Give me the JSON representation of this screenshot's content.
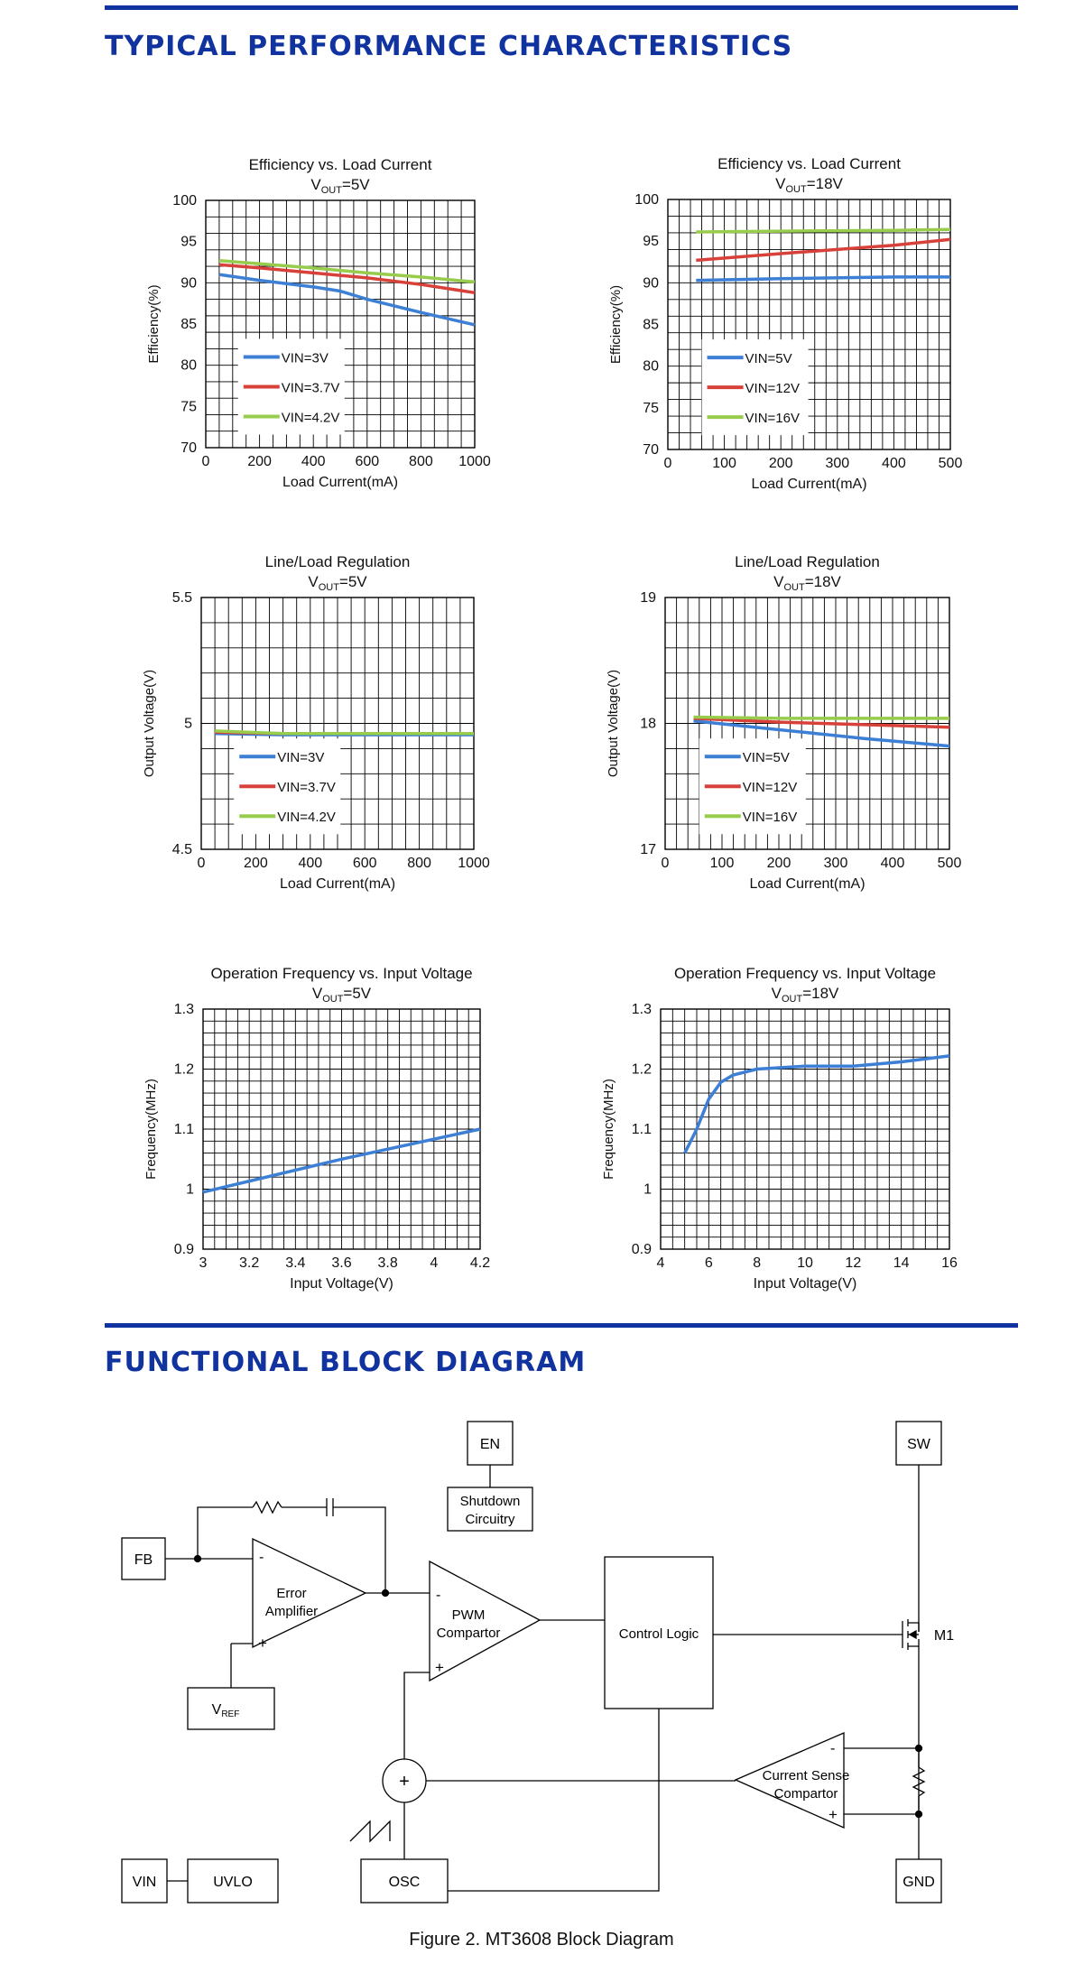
{
  "sections": {
    "performance_title": "TYPICAL PERFORMANCE CHARACTERISTICS",
    "block_diagram_title": "FUNCTIONAL BLOCK DIAGRAM"
  },
  "colors": {
    "blue": "#3c7fd4",
    "red": "#d8413a",
    "green": "#98cc4c",
    "rule": "#1133a0"
  },
  "chart_data": [
    {
      "type": "line",
      "title": "Efficiency vs. Load Current",
      "subtitle": {
        "main": "V",
        "sub": "OUT",
        "rest": "=5V"
      },
      "xlabel": "Load Current(mA)",
      "ylabel": "Efficiency(%)",
      "xlim": [
        0,
        1000
      ],
      "ylim": [
        70,
        100
      ],
      "xticks": [
        0,
        200,
        400,
        600,
        800,
        1000
      ],
      "yticks": [
        70,
        75,
        80,
        85,
        90,
        95,
        100
      ],
      "grid": true,
      "legend": "bottom-left",
      "series": [
        {
          "name": "VIN=3V",
          "color": "blue",
          "x": [
            50,
            200,
            400,
            500,
            600,
            800,
            1000
          ],
          "y": [
            91,
            90.3,
            89.5,
            89,
            88,
            86.4,
            84.9
          ]
        },
        {
          "name": "VIN=3.7V",
          "color": "red",
          "x": [
            50,
            200,
            400,
            600,
            800,
            1000
          ],
          "y": [
            92.2,
            91.8,
            91.2,
            90.6,
            89.8,
            88.8
          ]
        },
        {
          "name": "VIN=4.2V",
          "color": "green",
          "x": [
            50,
            200,
            400,
            600,
            800,
            1000
          ],
          "y": [
            92.7,
            92.3,
            91.8,
            91.2,
            90.7,
            90.1
          ]
        }
      ]
    },
    {
      "type": "line",
      "title": "Efficiency vs. Load Current",
      "subtitle": {
        "main": "V",
        "sub": "OUT",
        "rest": "=18V"
      },
      "xlabel": "Load Current(mA)",
      "ylabel": "Efficiency(%)",
      "xlim": [
        0,
        500
      ],
      "ylim": [
        70,
        100
      ],
      "xticks": [
        0,
        100,
        200,
        300,
        400,
        500
      ],
      "yticks": [
        70,
        75,
        80,
        85,
        90,
        95,
        100
      ],
      "grid": true,
      "legend": "bottom-left",
      "series": [
        {
          "name": "VIN=5V",
          "color": "blue",
          "x": [
            50,
            200,
            400,
            500
          ],
          "y": [
            90.3,
            90.5,
            90.7,
            90.7
          ]
        },
        {
          "name": "VIN=12V",
          "color": "red",
          "x": [
            50,
            200,
            400,
            500
          ],
          "y": [
            92.7,
            93.5,
            94.5,
            95.2
          ]
        },
        {
          "name": "VIN=16V",
          "color": "green",
          "x": [
            50,
            200,
            400,
            500
          ],
          "y": [
            96.1,
            96.2,
            96.3,
            96.4
          ]
        }
      ]
    },
    {
      "type": "line",
      "title": "Line/Load Regulation",
      "subtitle": {
        "main": "V",
        "sub": "OUT",
        "rest": "=5V"
      },
      "xlabel": "Load Current(mA)",
      "ylabel": "Output Voltage(V)",
      "xlim": [
        0,
        1000
      ],
      "ylim": [
        4.5,
        5.5
      ],
      "xticks": [
        0,
        200,
        400,
        600,
        800,
        1000
      ],
      "yticks": [
        4.5,
        5,
        5.5
      ],
      "grid": true,
      "legend": "bottom-left",
      "series": [
        {
          "name": "VIN=3V",
          "color": "blue",
          "x": [
            50,
            300,
            600,
            1000
          ],
          "y": [
            4.96,
            4.955,
            4.955,
            4.955
          ]
        },
        {
          "name": "VIN=3.7V",
          "color": "red",
          "x": [
            50,
            300,
            600,
            1000
          ],
          "y": [
            4.965,
            4.96,
            4.96,
            4.96
          ]
        },
        {
          "name": "VIN=4.2V",
          "color": "green",
          "x": [
            50,
            300,
            600,
            1000
          ],
          "y": [
            4.97,
            4.96,
            4.96,
            4.96
          ]
        }
      ]
    },
    {
      "type": "line",
      "title": "Line/Load Regulation",
      "subtitle": {
        "main": "V",
        "sub": "OUT",
        "rest": "=18V"
      },
      "xlabel": "Load Current(mA)",
      "ylabel": "Output Voltage(V)",
      "xlim": [
        0,
        500
      ],
      "ylim": [
        17,
        19
      ],
      "xticks": [
        0,
        100,
        200,
        300,
        400,
        500
      ],
      "yticks": [
        17,
        18,
        19
      ],
      "grid": true,
      "legend": "bottom-left",
      "series": [
        {
          "name": "VIN=5V",
          "color": "blue",
          "x": [
            50,
            200,
            350,
            500
          ],
          "y": [
            18.02,
            17.95,
            17.88,
            17.82
          ]
        },
        {
          "name": "VIN=12V",
          "color": "red",
          "x": [
            50,
            200,
            350,
            500
          ],
          "y": [
            18.04,
            18.01,
            17.99,
            17.97
          ]
        },
        {
          "name": "VIN=16V",
          "color": "green",
          "x": [
            50,
            200,
            350,
            500
          ],
          "y": [
            18.05,
            18.04,
            18.04,
            18.04
          ]
        }
      ]
    },
    {
      "type": "line",
      "title": "Operation Frequency vs. Input Voltage",
      "subtitle": {
        "main": "V",
        "sub": "OUT",
        "rest": "=5V"
      },
      "xlabel": "Input Voltage(V)",
      "ylabel": "Frequency(MHz)",
      "xlim": [
        3,
        4.2
      ],
      "ylim": [
        0.9,
        1.3
      ],
      "xticks": [
        3,
        3.2,
        3.4,
        3.6,
        3.8,
        4,
        4.2
      ],
      "yticks": [
        0.9,
        1,
        1.1,
        1.2,
        1.3
      ],
      "grid": true,
      "legend": "none",
      "series": [
        {
          "color": "blue",
          "x": [
            3,
            3.6,
            4.2
          ],
          "y": [
            0.995,
            1.05,
            1.1
          ]
        }
      ]
    },
    {
      "type": "line",
      "title": "Operation Frequency vs. Input Voltage",
      "subtitle": {
        "main": "V",
        "sub": "OUT",
        "rest": "=18V"
      },
      "xlabel": "Input Voltage(V)",
      "ylabel": "Frequency(MHz)",
      "xlim": [
        4,
        16
      ],
      "ylim": [
        0.9,
        1.3
      ],
      "xticks": [
        4,
        6,
        8,
        10,
        12,
        14,
        16
      ],
      "yticks": [
        0.9,
        1,
        1.1,
        1.2,
        1.3
      ],
      "grid": true,
      "legend": "none",
      "series": [
        {
          "color": "blue",
          "x": [
            5,
            5.5,
            6,
            6.5,
            7,
            8,
            10,
            12,
            14,
            16
          ],
          "y": [
            1.06,
            1.1,
            1.15,
            1.178,
            1.19,
            1.2,
            1.205,
            1.205,
            1.212,
            1.222
          ]
        }
      ]
    }
  ],
  "block_diagram": {
    "labels": {
      "en": "EN",
      "shutdown_1": "Shutdown",
      "shutdown_2": "Circuitry",
      "sw": "SW",
      "fb": "FB",
      "error_amp_1": "Error",
      "error_amp_2": "Amplifier",
      "pwm_1": "PWM",
      "pwm_2": "Compartor",
      "control_logic": "Control Logic",
      "m1": "M1",
      "vref_main": "V",
      "vref_sub": "REF",
      "cs_1": "Current Sense",
      "cs_2": "Compartor",
      "vin": "VIN",
      "uvlo": "UVLO",
      "osc": "OSC",
      "gnd": "GND",
      "minus": "-",
      "plus": "+"
    },
    "caption": "Figure 2. MT3608 Block Diagram"
  }
}
